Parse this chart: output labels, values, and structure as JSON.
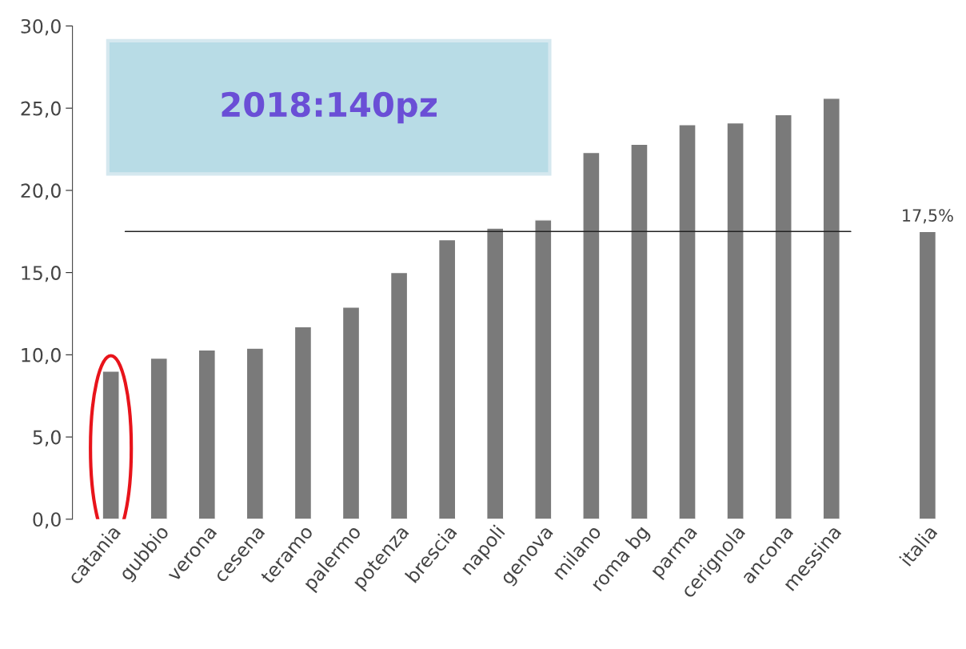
{
  "chart_data": {
    "type": "bar",
    "categories": [
      "catania",
      "gubbio",
      "verona",
      "cesena",
      "teramo",
      "palermo",
      "potenza",
      "brescia",
      "napoli",
      "genova",
      "milano",
      "roma bg",
      "parma",
      "cerignola",
      "ancona",
      "messina",
      null,
      "italia"
    ],
    "values": [
      9.0,
      9.8,
      10.3,
      10.4,
      11.7,
      12.9,
      15.0,
      17.0,
      17.7,
      18.2,
      22.3,
      22.8,
      24.0,
      24.1,
      24.6,
      25.6,
      null,
      17.5
    ],
    "value_labels": [
      null,
      null,
      null,
      null,
      null,
      null,
      null,
      null,
      null,
      null,
      null,
      null,
      null,
      null,
      null,
      null,
      null,
      "17,5%"
    ],
    "color": "#7a7a7a",
    "ylim": [
      0,
      30
    ],
    "yticks": [
      {
        "value": 0,
        "label": "0,0"
      },
      {
        "value": 5,
        "label": "5,0"
      },
      {
        "value": 10,
        "label": "10,0"
      },
      {
        "value": 15,
        "label": "15,0"
      },
      {
        "value": 20,
        "label": "20,0"
      },
      {
        "value": 25,
        "label": "25,0"
      },
      {
        "value": 30,
        "label": "30,0"
      }
    ],
    "ref_lines": [
      {
        "axis": "y",
        "value": 17.5,
        "color": "#222222"
      }
    ],
    "annotations": [
      "2018:140pz"
    ],
    "grid": false,
    "legend": false
  }
}
